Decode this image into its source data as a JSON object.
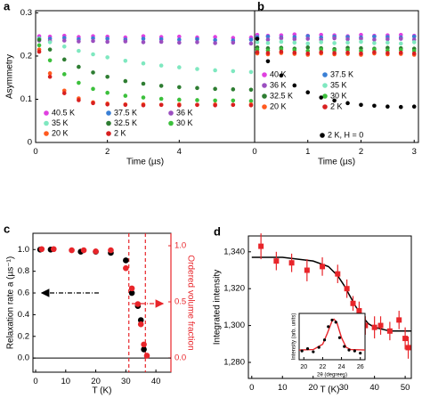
{
  "chart_data": [
    {
      "type": "scatter",
      "label": "a",
      "x_label": "Time (µs)",
      "y_label": "Asymmetry",
      "x": [
        0.1,
        0.4,
        0.8,
        1.2,
        1.6,
        2.0,
        2.5,
        3.0,
        3.5,
        4.0,
        4.5,
        5.0,
        5.5,
        6.0
      ],
      "xlim": [
        0,
        6.1
      ],
      "xticks": [
        0,
        2,
        4
      ],
      "ylim": [
        0,
        0.305
      ],
      "yticks": [
        0,
        0.1,
        0.2,
        0.3
      ],
      "series": [
        {
          "name": "40.5 K",
          "color": "#e040e0",
          "values": [
            0.246,
            0.245,
            0.247,
            0.244,
            0.246,
            0.245,
            0.243,
            0.246,
            0.244,
            0.245,
            0.243,
            0.244,
            0.242,
            0.243
          ]
        },
        {
          "name": "37.5 K",
          "color": "#3a7fd5",
          "values": [
            0.241,
            0.24,
            0.242,
            0.239,
            0.241,
            0.24,
            0.238,
            0.24,
            0.239,
            0.238,
            0.239,
            0.237,
            0.236,
            0.238
          ]
        },
        {
          "name": "36 K",
          "color": "#9b4fc0",
          "values": [
            0.236,
            0.235,
            0.236,
            0.234,
            0.235,
            0.233,
            0.234,
            0.232,
            0.233,
            0.231,
            0.232,
            0.23,
            0.231,
            0.229
          ]
        },
        {
          "name": "35 K",
          "color": "#7fe8c0",
          "values": [
            0.24,
            0.232,
            0.222,
            0.212,
            0.204,
            0.197,
            0.189,
            0.183,
            0.178,
            0.174,
            0.17,
            0.167,
            0.165,
            0.163
          ]
        },
        {
          "name": "32.5 K",
          "color": "#2e7d32",
          "values": [
            0.238,
            0.215,
            0.192,
            0.175,
            0.162,
            0.152,
            0.142,
            0.136,
            0.131,
            0.128,
            0.126,
            0.124,
            0.123,
            0.122
          ]
        },
        {
          "name": "30 K",
          "color": "#3cc03c",
          "values": [
            0.225,
            0.19,
            0.158,
            0.138,
            0.124,
            0.115,
            0.108,
            0.104,
            0.101,
            0.099,
            0.098,
            0.097,
            0.097,
            0.096
          ]
        },
        {
          "name": "20 K",
          "color": "#ff5a1f",
          "values": [
            0.215,
            0.16,
            0.12,
            0.102,
            0.093,
            0.09,
            0.088,
            0.088,
            0.087,
            0.088,
            0.087,
            0.088,
            0.087,
            0.088
          ]
        },
        {
          "name": "2 K",
          "color": "#d82020",
          "values": [
            0.21,
            0.152,
            0.114,
            0.098,
            0.091,
            0.088,
            0.087,
            0.086,
            0.087,
            0.086,
            0.087,
            0.086,
            0.087,
            0.086
          ]
        }
      ]
    },
    {
      "type": "scatter",
      "label": "b",
      "x_label": "Time (µs)",
      "x": [
        0.05,
        0.25,
        0.5,
        0.75,
        1.0,
        1.25,
        1.5,
        1.75,
        2.0,
        2.25,
        2.5,
        2.75,
        3.0
      ],
      "xlim": [
        0,
        3.08
      ],
      "xticks": [
        0,
        1,
        2,
        3
      ],
      "ylim": [
        0,
        0.305
      ],
      "series": [
        {
          "name": "40 K",
          "color": "#e040e0",
          "values": [
            0.249,
            0.247,
            0.248,
            0.25,
            0.247,
            0.249,
            0.248,
            0.246,
            0.249,
            0.247,
            0.248,
            0.249,
            0.247
          ]
        },
        {
          "name": "37.5 K",
          "color": "#3a7fd5",
          "values": [
            0.244,
            0.245,
            0.243,
            0.244,
            0.246,
            0.243,
            0.245,
            0.244,
            0.243,
            0.245,
            0.244,
            0.243,
            0.245
          ]
        },
        {
          "name": "36 K",
          "color": "#9b4fc0",
          "values": [
            0.24,
            0.238,
            0.241,
            0.239,
            0.24,
            0.238,
            0.241,
            0.239,
            0.24,
            0.238,
            0.239,
            0.24,
            0.238
          ]
        },
        {
          "name": "35 K",
          "color": "#7fe8c0",
          "values": [
            0.232,
            0.23,
            0.233,
            0.231,
            0.229,
            0.232,
            0.23,
            0.231,
            0.233,
            0.23,
            0.231,
            0.229,
            0.232
          ]
        },
        {
          "name": "32.5 K",
          "color": "#2e7d32",
          "values": [
            0.22,
            0.218,
            0.219,
            0.217,
            0.22,
            0.218,
            0.216,
            0.219,
            0.218,
            0.217,
            0.219,
            0.218,
            0.217
          ]
        },
        {
          "name": "30 K",
          "color": "#3cc03c",
          "values": [
            0.215,
            0.213,
            0.216,
            0.214,
            0.212,
            0.215,
            0.213,
            0.214,
            0.212,
            0.215,
            0.213,
            0.214,
            0.212
          ]
        },
        {
          "name": "20 K",
          "color": "#ff5a1f",
          "values": [
            0.206,
            0.204,
            0.207,
            0.205,
            0.203,
            0.206,
            0.204,
            0.205,
            0.203,
            0.206,
            0.204,
            0.205,
            0.203
          ]
        },
        {
          "name": "2 K",
          "color": "#d82020",
          "values": [
            0.209,
            0.207,
            0.21,
            0.208,
            0.206,
            0.209,
            0.207,
            0.208,
            0.206,
            0.209,
            0.207,
            0.208,
            0.206
          ]
        },
        {
          "name": "2 K, H = 0",
          "color": "#000000",
          "values": [
            0.24,
            0.188,
            0.155,
            0.132,
            0.116,
            0.104,
            0.097,
            0.091,
            0.087,
            0.085,
            0.083,
            0.082,
            0.083
          ]
        }
      ]
    },
    {
      "type": "dual-scatter",
      "label": "c",
      "x_label": "T (K)",
      "y_label": "Relaxation rate a (µs⁻¹)",
      "y2_label": "Ordered volume fraction",
      "xlim": [
        -0.9,
        45
      ],
      "xticks": [
        0,
        10,
        20,
        30,
        40
      ],
      "ylim": [
        -0.13,
        1.15
      ],
      "yticks": [
        {
          "value": 1,
          "label": "1.0"
        },
        0.8,
        0.6,
        0.4,
        0.2,
        {
          "value": 0,
          "label": "0.0"
        }
      ],
      "y2lim": [
        -0.127,
        1.111
      ],
      "y2ticks": [
        {
          "value": 1,
          "label": "1.0"
        },
        0.5,
        {
          "value": 0,
          "label": "0.0"
        }
      ],
      "dashed_lines_x": [
        31,
        36.5
      ],
      "dashed_color": "#e8252a",
      "series": [
        {
          "color": "#000000",
          "x": [
            1.5,
            5,
            15,
            20,
            25,
            30,
            32,
            34,
            35,
            36
          ],
          "values": [
            1.0,
            1.0,
            0.98,
            0.98,
            0.97,
            0.9,
            0.6,
            0.48,
            0.35,
            0.08
          ]
        },
        {
          "color": "#e8252a",
          "axis": "y2",
          "x": [
            2,
            6,
            12,
            16,
            20,
            25,
            30,
            32,
            34,
            35,
            36,
            37
          ],
          "values": [
            0.97,
            0.97,
            0.96,
            0.96,
            0.95,
            0.96,
            0.8,
            0.62,
            0.48,
            0.3,
            0.12,
            0.02
          ]
        }
      ]
    },
    {
      "type": "errorbar",
      "label": "d",
      "x_label": "T (K)",
      "y_label": "Integrated intensity",
      "xlim": [
        -1.1,
        52
      ],
      "xticks": [
        0,
        10,
        20,
        30,
        40,
        50
      ],
      "ylim": [
        1271.3,
        1348.6
      ],
      "yticks": [
        {
          "value": 1280,
          "label": "1,280"
        },
        {
          "value": 1300,
          "label": "1,300"
        },
        {
          "value": 1320,
          "label": "1,320"
        },
        {
          "value": 1340,
          "label": "1,340"
        }
      ],
      "color": "#e8252a",
      "x": [
        3,
        8,
        13,
        18,
        23,
        28,
        31,
        33,
        35,
        37,
        40,
        42,
        45,
        48,
        50,
        51
      ],
      "values": [
        1343,
        1335,
        1334,
        1330,
        1332,
        1328,
        1320,
        1312,
        1308,
        1300,
        1299,
        1300,
        1297,
        1303,
        1293,
        1288
      ],
      "errors": [
        7,
        5,
        5,
        6,
        5,
        5,
        5,
        4,
        5,
        5,
        6,
        5,
        5,
        5,
        6,
        6
      ],
      "fit": {
        "color": "#000000",
        "x": [
          0,
          10,
          20,
          25,
          28,
          30,
          32,
          34,
          36,
          38,
          40,
          45,
          52
        ],
        "values": [
          1337,
          1337,
          1335,
          1332,
          1327,
          1322,
          1316,
          1310,
          1305,
          1301,
          1299,
          1297,
          1297
        ]
      }
    },
    {
      "type": "inset",
      "x_label": "2θ (degrees)",
      "y_label": "Intensity (arb. units)",
      "xlim": [
        19.5,
        26.5
      ],
      "xticks": [
        20,
        22,
        24,
        26
      ],
      "ylim": [
        0,
        1.05
      ],
      "x": [
        19.8,
        20.4,
        21,
        21.6,
        22.2,
        22.6,
        23,
        23.4,
        23.8,
        24.3,
        24.8,
        25.4,
        26
      ],
      "values": [
        0.2,
        0.25,
        0.18,
        0.28,
        0.45,
        0.75,
        0.9,
        0.85,
        0.5,
        0.3,
        0.22,
        0.2,
        0.15
      ],
      "color": "#000000",
      "fit": {
        "color": "#e8252a",
        "x": [
          19.5,
          21,
          22,
          22.5,
          23,
          23.2,
          23.5,
          24,
          24.5,
          25,
          26.5
        ],
        "values": [
          0.22,
          0.23,
          0.35,
          0.6,
          0.88,
          0.92,
          0.85,
          0.5,
          0.28,
          0.23,
          0.22
        ]
      }
    }
  ]
}
